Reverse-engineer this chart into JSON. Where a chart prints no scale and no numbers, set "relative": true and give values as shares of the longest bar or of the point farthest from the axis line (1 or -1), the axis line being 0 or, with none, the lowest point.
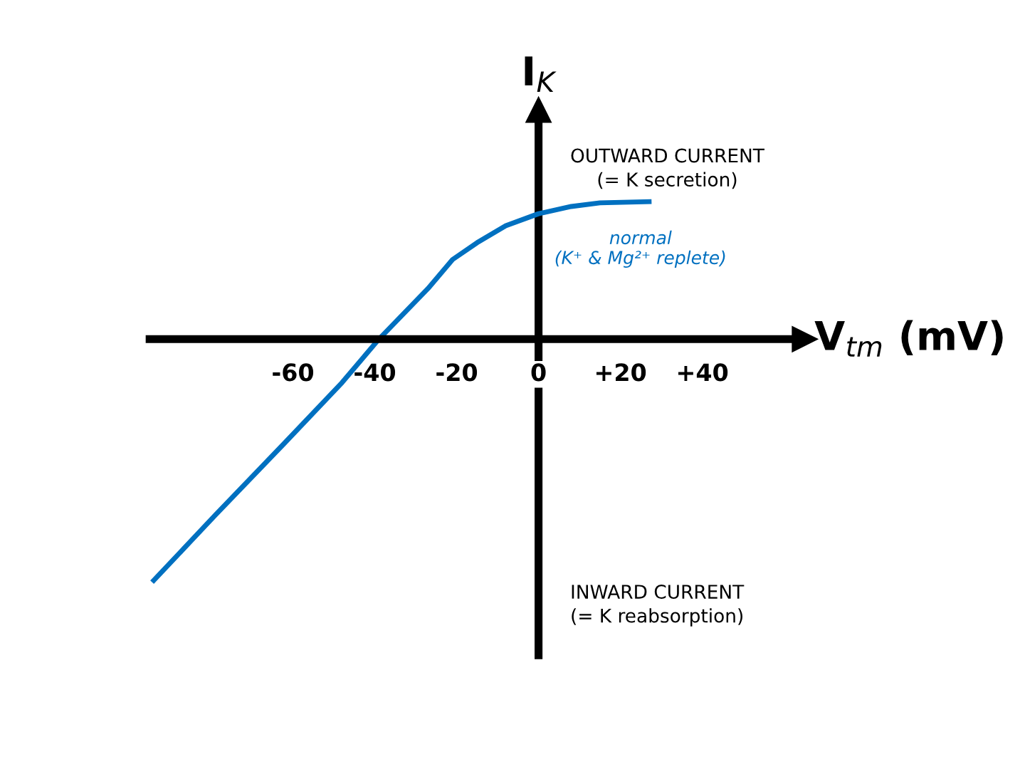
{
  "chart_data": {
    "type": "line",
    "relative": true,
    "xlabel": "V$_{tm}$ (mV)",
    "ylabel": "I$_{K}$",
    "x": [
      -94,
      -79,
      -62,
      -48,
      -39,
      -27,
      -21,
      -15,
      -8,
      0,
      8,
      15,
      27
    ],
    "xlim": [
      -95,
      65
    ],
    "xticks": [
      {
        "value": -60,
        "label": "-60"
      },
      {
        "value": -40,
        "label": "-40"
      },
      {
        "value": -20,
        "label": "-20"
      },
      {
        "value": 0,
        "label": "0"
      },
      {
        "value": 20,
        "label": "+20"
      },
      {
        "value": 40,
        "label": "+40"
      }
    ],
    "tick_labels": "x",
    "legend": false,
    "marker": "none",
    "line_style": "solid",
    "series": [
      {
        "name": "normal\n(K⁺ & Mg²⁺ replete)",
        "color": "#0070c0",
        "values": [
          -1,
          -0.73,
          -0.43,
          -0.18,
          0,
          0.21,
          0.33,
          0.4,
          0.47,
          0.52,
          0.55,
          0.565,
          0.57
        ]
      }
    ],
    "annotations": [
      "OUTWARD CURRENT\n(= K secretion)",
      "INWARD CURRENT\n(= K reabsorption)"
    ]
  }
}
